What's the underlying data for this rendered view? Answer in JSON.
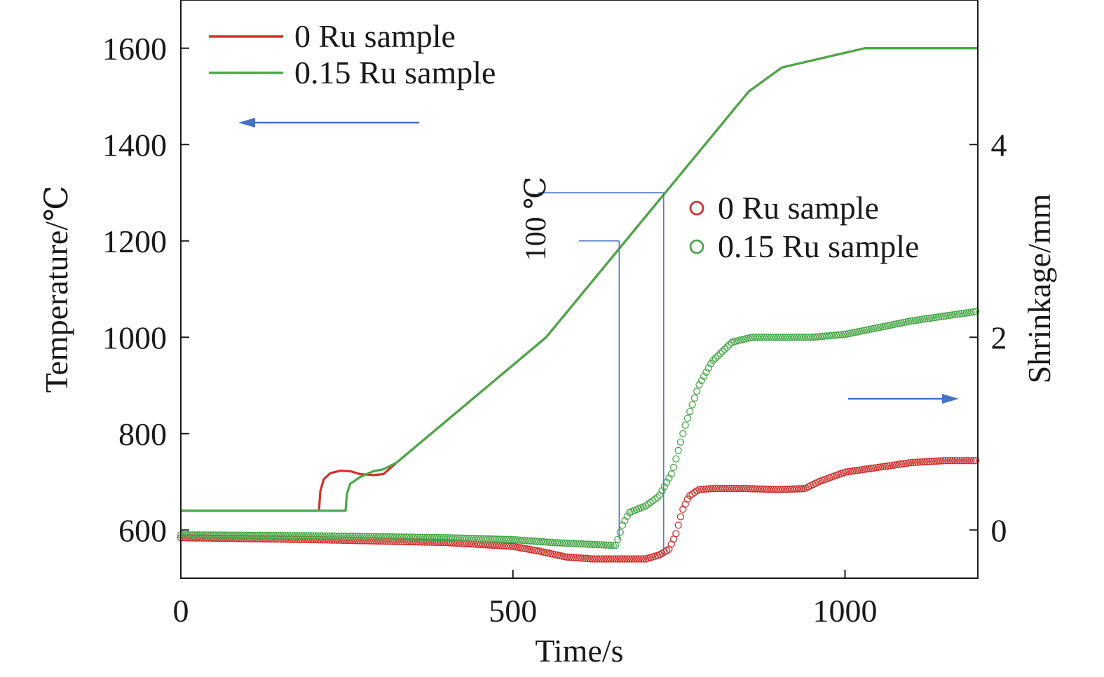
{
  "chart_data": {
    "type": "line",
    "title": "",
    "xlabel": "Time/s",
    "ylabel_left": "Temperature/℃",
    "ylabel_right": "Shrinkage/mm",
    "xlim": [
      0,
      1200
    ],
    "ylim_left": [
      500,
      1700
    ],
    "ylim_right": [
      -0.5,
      5.5
    ],
    "x_ticks": [
      0,
      500,
      1000
    ],
    "y_left_ticks": [
      600,
      800,
      1000,
      1200,
      1400,
      1600
    ],
    "y_right_ticks": [
      0,
      2,
      4
    ],
    "grid": false,
    "legend_temperature": [
      "0 Ru sample",
      "0.15 Ru sample"
    ],
    "legend_shrinkage": [
      "0 Ru sample",
      "0.15 Ru sample"
    ],
    "annotation": {
      "label": "100 ℃",
      "temperature_low": 1200,
      "temperature_high": 1300,
      "time_low": 660,
      "time_high": 727
    },
    "colors": {
      "red": "#d0312d",
      "green": "#4aa84a",
      "guide": "#4472c4",
      "axis": "#1a1a1a"
    },
    "series": [
      {
        "name": "0 Ru sample",
        "axis": "left",
        "kind": "line",
        "color": "#d0312d",
        "x": [
          0,
          208,
          210,
          215,
          225,
          240,
          255,
          270,
          290,
          305,
          325,
          550,
          855,
          905,
          1030,
          1200
        ],
        "y": [
          640,
          640,
          680,
          705,
          718,
          723,
          722,
          716,
          714,
          716,
          740,
          1000,
          1510,
          1560,
          1600,
          1600
        ]
      },
      {
        "name": "0.15 Ru sample",
        "axis": "left",
        "kind": "line",
        "color": "#4aa84a",
        "x": [
          0,
          248,
          250,
          255,
          270,
          290,
          305,
          325,
          550,
          855,
          905,
          1030,
          1200
        ],
        "y": [
          640,
          640,
          675,
          696,
          710,
          722,
          726,
          740,
          1000,
          1510,
          1560,
          1600,
          1600
        ]
      },
      {
        "name": "0 Ru sample",
        "axis": "right",
        "kind": "markers",
        "color": "#d0312d",
        "x": [
          0,
          200,
          400,
          500,
          540,
          580,
          620,
          660,
          700,
          720,
          735,
          745,
          755,
          765,
          780,
          800,
          850,
          900,
          940,
          960,
          1000,
          1050,
          1100,
          1150,
          1200
        ],
        "y": [
          -0.08,
          -0.1,
          -0.13,
          -0.17,
          -0.22,
          -0.28,
          -0.3,
          -0.3,
          -0.3,
          -0.26,
          -0.2,
          -0.05,
          0.2,
          0.35,
          0.42,
          0.43,
          0.43,
          0.42,
          0.43,
          0.5,
          0.6,
          0.65,
          0.7,
          0.72,
          0.72
        ]
      },
      {
        "name": "0.15 Ru sample",
        "axis": "right",
        "kind": "markers",
        "color": "#4aa84a",
        "x": [
          0,
          200,
          400,
          500,
          560,
          620,
          655,
          665,
          675,
          700,
          720,
          740,
          760,
          780,
          800,
          830,
          860,
          900,
          950,
          1000,
          1050,
          1100,
          1150,
          1200
        ],
        "y": [
          -0.05,
          -0.06,
          -0.08,
          -0.1,
          -0.13,
          -0.15,
          -0.16,
          0.05,
          0.18,
          0.25,
          0.35,
          0.6,
          1.1,
          1.5,
          1.75,
          1.95,
          2.0,
          2.0,
          2.0,
          2.03,
          2.1,
          2.17,
          2.22,
          2.27
        ]
      }
    ]
  }
}
